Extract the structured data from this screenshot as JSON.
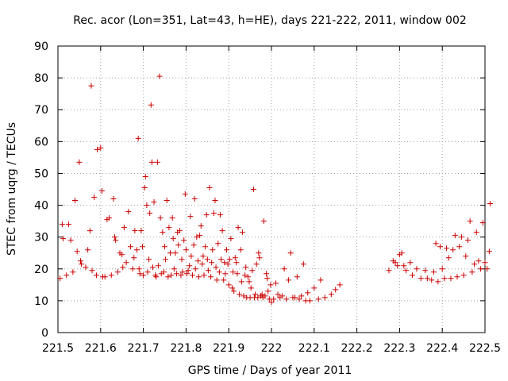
{
  "chart_data": {
    "type": "scatter",
    "title": "Rec. acor (Lon=351, Lat=43, h=HE), days 221-222, 2011, window 002",
    "xlabel": "GPS time / Days of year 2011",
    "ylabel": "STEC from uqrg / TECUs",
    "xlim": [
      221.5,
      222.5
    ],
    "ylim": [
      0,
      90
    ],
    "x_ticks": [
      "221.5",
      "221.6",
      "221.7",
      "221.8",
      "221.9",
      "222",
      "222.1",
      "222.2",
      "222.3",
      "222.4",
      "222.5"
    ],
    "x_tick_values": [
      221.5,
      221.6,
      221.7,
      221.8,
      221.9,
      222.0,
      222.1,
      222.2,
      222.3,
      222.4,
      222.5
    ],
    "y_ticks": [
      "0",
      "10",
      "20",
      "30",
      "40",
      "50",
      "60",
      "70",
      "80",
      "90"
    ],
    "y_tick_values": [
      0,
      10,
      20,
      30,
      40,
      50,
      60,
      70,
      80,
      90
    ],
    "grid": true,
    "marker": "+",
    "color": "#cc0000",
    "series": [
      {
        "points": [
          [
            221.505,
            17
          ],
          [
            221.51,
            34
          ],
          [
            221.512,
            29.5
          ],
          [
            221.52,
            18
          ],
          [
            221.525,
            34
          ],
          [
            221.53,
            29
          ],
          [
            221.535,
            19
          ],
          [
            221.54,
            41.5
          ],
          [
            221.545,
            25.5
          ],
          [
            221.55,
            53.5
          ],
          [
            221.553,
            22.5
          ],
          [
            221.555,
            21.5
          ],
          [
            221.565,
            20.5
          ],
          [
            221.57,
            26
          ],
          [
            221.575,
            32
          ],
          [
            221.578,
            77.5
          ],
          [
            221.58,
            19.5
          ],
          [
            221.585,
            42.5
          ],
          [
            221.59,
            18
          ],
          [
            221.592,
            57.5
          ],
          [
            221.6,
            58
          ],
          [
            221.603,
            44.5
          ],
          [
            221.605,
            17.5
          ],
          [
            221.61,
            17.5
          ],
          [
            221.615,
            35.5
          ],
          [
            221.62,
            36
          ],
          [
            221.625,
            18
          ],
          [
            221.63,
            42
          ],
          [
            221.633,
            30
          ],
          [
            221.635,
            29
          ],
          [
            221.64,
            19
          ],
          [
            221.645,
            25
          ],
          [
            221.65,
            24.5
          ],
          [
            221.652,
            20.5
          ],
          [
            221.655,
            33
          ],
          [
            221.66,
            22
          ],
          [
            221.665,
            38
          ],
          [
            221.67,
            27
          ],
          [
            221.675,
            20
          ],
          [
            221.678,
            23.5
          ],
          [
            221.68,
            32
          ],
          [
            221.685,
            26
          ],
          [
            221.688,
            61
          ],
          [
            221.69,
            20
          ],
          [
            221.692,
            18.5
          ],
          [
            221.695,
            32
          ],
          [
            221.698,
            27
          ],
          [
            221.7,
            18
          ],
          [
            221.703,
            45.5
          ],
          [
            221.705,
            49
          ],
          [
            221.708,
            40
          ],
          [
            221.71,
            19
          ],
          [
            221.713,
            23
          ],
          [
            221.715,
            37.5
          ],
          [
            221.718,
            71.5
          ],
          [
            221.72,
            53.5
          ],
          [
            221.722,
            20.5
          ],
          [
            221.725,
            41
          ],
          [
            221.728,
            18
          ],
          [
            221.73,
            17.5
          ],
          [
            221.733,
            53.5
          ],
          [
            221.735,
            21
          ],
          [
            221.738,
            80.5
          ],
          [
            221.74,
            36
          ],
          [
            221.742,
            18.5
          ],
          [
            221.745,
            31.5
          ],
          [
            221.748,
            19
          ],
          [
            221.75,
            27
          ],
          [
            221.752,
            23
          ],
          [
            221.755,
            41.5
          ],
          [
            221.758,
            17.5
          ],
          [
            221.76,
            33
          ],
          [
            221.763,
            25
          ],
          [
            221.765,
            18
          ],
          [
            221.768,
            36
          ],
          [
            221.77,
            29.5
          ],
          [
            221.772,
            20
          ],
          [
            221.775,
            25
          ],
          [
            221.778,
            18.5
          ],
          [
            221.78,
            31.5
          ],
          [
            221.782,
            27.5
          ],
          [
            221.785,
            32
          ],
          [
            221.788,
            18
          ],
          [
            221.79,
            23
          ],
          [
            221.792,
            19
          ],
          [
            221.795,
            29
          ],
          [
            221.798,
            43.5
          ],
          [
            221.8,
            26
          ],
          [
            221.802,
            18.5
          ],
          [
            221.805,
            19.5
          ],
          [
            221.808,
            21
          ],
          [
            221.81,
            36.5
          ],
          [
            221.812,
            24
          ],
          [
            221.815,
            18
          ],
          [
            221.818,
            27.5
          ],
          [
            221.82,
            42
          ],
          [
            221.822,
            20
          ],
          [
            221.825,
            30
          ],
          [
            221.828,
            22.5
          ],
          [
            221.83,
            17.5
          ],
          [
            221.832,
            30.5
          ],
          [
            221.835,
            33.5
          ],
          [
            221.838,
            21.5
          ],
          [
            221.84,
            24
          ],
          [
            221.842,
            18
          ],
          [
            221.845,
            27
          ],
          [
            221.848,
            37
          ],
          [
            221.85,
            23
          ],
          [
            221.852,
            19.5
          ],
          [
            221.855,
            45.5
          ],
          [
            221.858,
            17.5
          ],
          [
            221.86,
            22
          ],
          [
            221.862,
            26
          ],
          [
            221.865,
            37.5
          ],
          [
            221.868,
            41.5
          ],
          [
            221.87,
            20.5
          ],
          [
            221.872,
            16.5
          ],
          [
            221.875,
            28
          ],
          [
            221.878,
            19
          ],
          [
            221.88,
            37
          ],
          [
            221.882,
            23
          ],
          [
            221.885,
            32
          ],
          [
            221.888,
            16.5
          ],
          [
            221.89,
            22
          ],
          [
            221.892,
            18.5
          ],
          [
            221.895,
            26
          ],
          [
            221.898,
            21.5
          ],
          [
            221.9,
            15
          ],
          [
            221.902,
            23
          ],
          [
            221.905,
            29.5
          ],
          [
            221.908,
            14
          ],
          [
            221.91,
            19
          ],
          [
            221.912,
            13
          ],
          [
            221.915,
            23.5
          ],
          [
            221.918,
            22
          ],
          [
            221.92,
            18.5
          ],
          [
            221.922,
            33
          ],
          [
            221.925,
            12
          ],
          [
            221.928,
            26
          ],
          [
            221.93,
            16
          ],
          [
            221.932,
            31.5
          ],
          [
            221.935,
            11.5
          ],
          [
            221.938,
            18
          ],
          [
            221.94,
            20.5
          ],
          [
            221.942,
            11
          ],
          [
            221.945,
            17.5
          ],
          [
            221.948,
            16
          ],
          [
            221.95,
            11
          ],
          [
            221.952,
            14
          ],
          [
            221.955,
            19.5
          ],
          [
            221.958,
            45
          ],
          [
            221.96,
            11
          ],
          [
            221.962,
            12
          ],
          [
            221.965,
            21.5
          ],
          [
            221.968,
            11
          ],
          [
            221.97,
            25
          ],
          [
            221.972,
            23.5
          ],
          [
            221.975,
            11.5
          ],
          [
            221.978,
            12
          ],
          [
            221.98,
            11
          ],
          [
            221.982,
            35
          ],
          [
            221.985,
            11.5
          ],
          [
            221.988,
            18.5
          ],
          [
            221.99,
            17
          ],
          [
            221.992,
            13
          ],
          [
            221.995,
            10.5
          ],
          [
            221.998,
            15
          ],
          [
            222.0,
            9.5
          ],
          [
            222.005,
            10.5
          ],
          [
            222.01,
            15.5
          ],
          [
            222.015,
            12
          ],
          [
            222.02,
            11
          ],
          [
            222.025,
            11.5
          ],
          [
            222.03,
            20
          ],
          [
            222.035,
            10.5
          ],
          [
            222.04,
            16.5
          ],
          [
            222.045,
            25
          ],
          [
            222.05,
            11
          ],
          [
            222.055,
            11
          ],
          [
            222.06,
            17.5
          ],
          [
            222.065,
            10.5
          ],
          [
            222.07,
            11.5
          ],
          [
            222.075,
            21.5
          ],
          [
            222.08,
            10
          ],
          [
            222.085,
            12.5
          ],
          [
            222.09,
            10
          ],
          [
            222.1,
            14
          ],
          [
            222.11,
            10.5
          ],
          [
            222.115,
            16.5
          ],
          [
            222.125,
            11
          ],
          [
            222.14,
            12
          ],
          [
            222.15,
            13.5
          ],
          [
            222.16,
            15
          ],
          [
            222.275,
            19.5
          ],
          [
            222.285,
            22.5
          ],
          [
            222.29,
            22
          ],
          [
            222.295,
            21
          ],
          [
            222.3,
            24.5
          ],
          [
            222.305,
            25
          ],
          [
            222.31,
            21
          ],
          [
            222.315,
            19.5
          ],
          [
            222.325,
            22
          ],
          [
            222.33,
            18
          ],
          [
            222.34,
            20
          ],
          [
            222.35,
            17
          ],
          [
            222.36,
            19.5
          ],
          [
            222.365,
            17
          ],
          [
            222.375,
            16.5
          ],
          [
            222.38,
            19
          ],
          [
            222.385,
            28
          ],
          [
            222.39,
            16
          ],
          [
            222.395,
            27
          ],
          [
            222.4,
            20
          ],
          [
            222.405,
            17
          ],
          [
            222.41,
            26.5
          ],
          [
            222.415,
            23.5
          ],
          [
            222.42,
            17
          ],
          [
            222.425,
            26
          ],
          [
            222.43,
            30.5
          ],
          [
            222.435,
            17.5
          ],
          [
            222.44,
            27
          ],
          [
            222.445,
            30
          ],
          [
            222.45,
            18
          ],
          [
            222.455,
            24
          ],
          [
            222.46,
            29
          ],
          [
            222.465,
            35
          ],
          [
            222.47,
            19
          ],
          [
            222.475,
            21.5
          ],
          [
            222.48,
            31.5
          ],
          [
            222.485,
            22.5
          ],
          [
            222.49,
            20
          ],
          [
            222.495,
            34.5
          ],
          [
            222.5,
            22
          ],
          [
            222.505,
            20
          ],
          [
            222.51,
            25.5
          ],
          [
            222.512,
            40.5
          ]
        ]
      }
    ]
  }
}
